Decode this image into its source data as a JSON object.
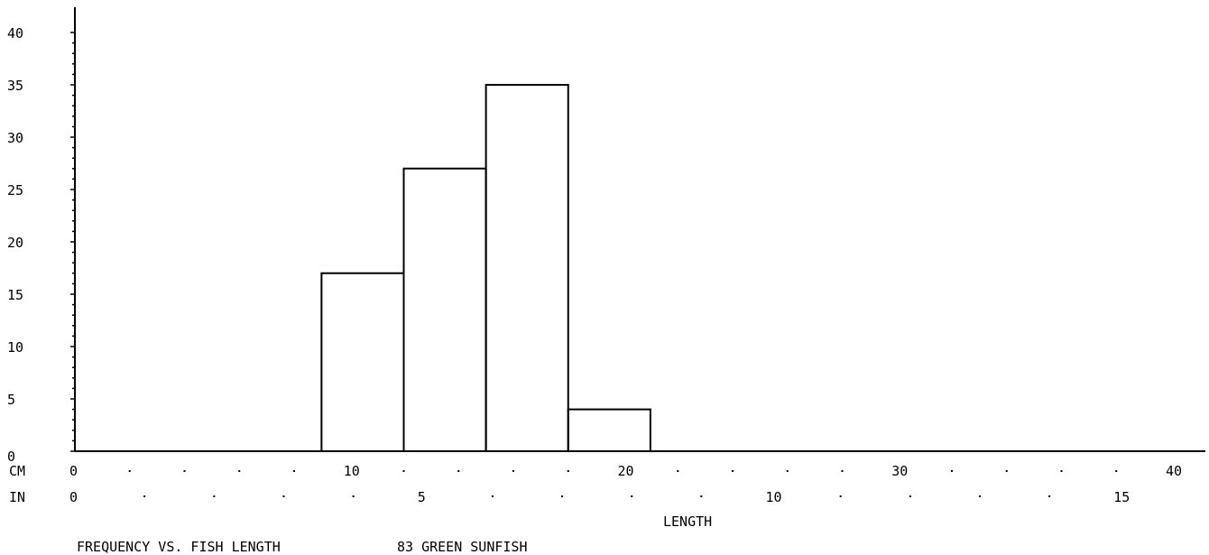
{
  "chart_data": {
    "type": "bar",
    "title": "FREQUENCY VS. FISH LENGTH",
    "subtitle": "83 GREEN SUNFISH",
    "xlabel": "LENGTH",
    "ylabel": "",
    "x_units_primary": "CM",
    "x_units_secondary": "IN",
    "bins": [
      {
        "x0": 9,
        "x1": 12,
        "value": 17
      },
      {
        "x0": 12,
        "x1": 15,
        "value": 27
      },
      {
        "x0": 15,
        "x1": 18,
        "value": 35
      },
      {
        "x0": 18,
        "x1": 21,
        "value": 4
      }
    ],
    "xlim": [
      0,
      40
    ],
    "ylim": [
      0,
      40
    ],
    "y_ticks": [
      "0",
      "5",
      "10",
      "15",
      "20",
      "25",
      "30",
      "35",
      "40"
    ],
    "x_ticks_cm": [
      "0",
      "10",
      "20",
      "30",
      "40"
    ],
    "x_ticks_in": [
      "0",
      "5",
      "10",
      "15"
    ],
    "grid": false,
    "colors": {
      "line": "#000000",
      "background": "#ffffff"
    }
  }
}
